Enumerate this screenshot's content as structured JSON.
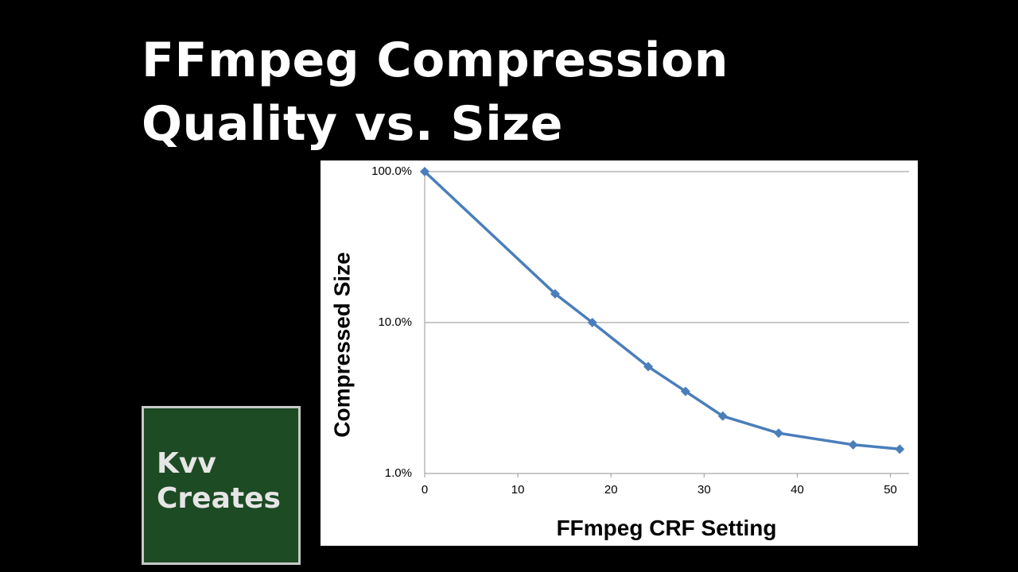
{
  "title": {
    "line1": "FFmpeg Compression",
    "line2": "Quality vs. Size"
  },
  "logo": {
    "line1": "Kvv",
    "line2": "Creates"
  },
  "colors": {
    "background": "#000000",
    "series": "#4a7ebb",
    "logo_background": "#1d4b24",
    "logo_border": "#c8c8c8",
    "grid": "#a6a6a6"
  },
  "chart_data": {
    "type": "line",
    "xlabel": "FFmpeg CRF Setting",
    "ylabel": "Compressed Size",
    "x_scale": "linear",
    "y_scale": "log",
    "xlim": [
      0,
      52
    ],
    "ylim": [
      1,
      100
    ],
    "x_ticks": [
      "0",
      "10",
      "20",
      "30",
      "40",
      "50"
    ],
    "x_tick_values": [
      0,
      10,
      20,
      30,
      40,
      50
    ],
    "y_ticks": [
      "1.0%",
      "10.0%",
      "100.0%"
    ],
    "y_tick_values": [
      1,
      10,
      100
    ],
    "grid": "horizontal",
    "legend": "none",
    "marker": "diamond",
    "series": [
      {
        "x": [
          0,
          14,
          18,
          24,
          28,
          32,
          38,
          46,
          51
        ],
        "y": [
          100,
          15.5,
          10,
          5.1,
          3.5,
          2.4,
          1.85,
          1.55,
          1.45
        ]
      }
    ]
  }
}
